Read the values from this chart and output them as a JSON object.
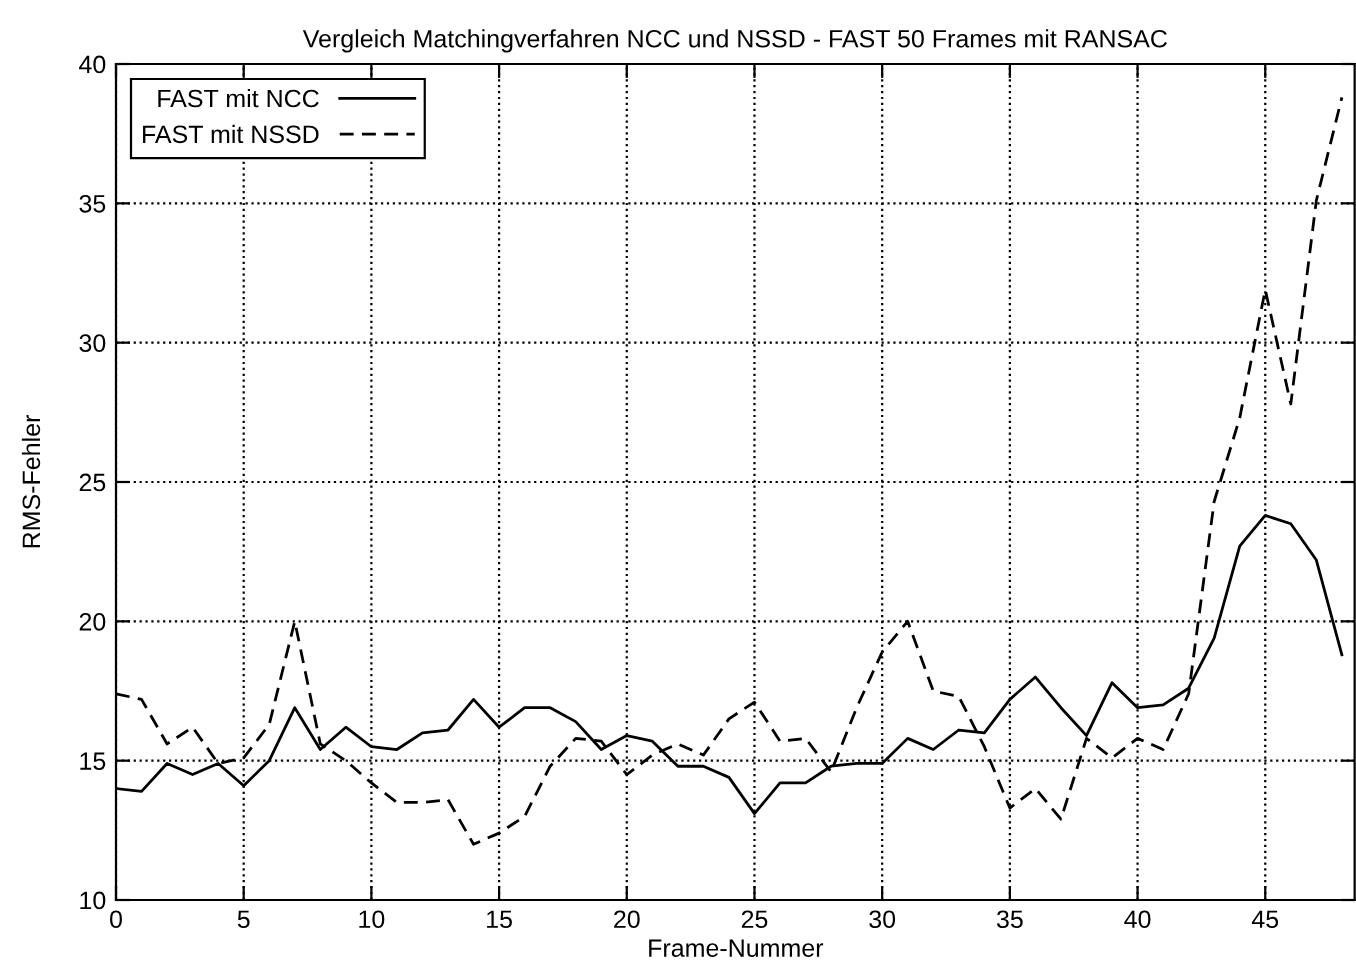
{
  "chart_data": {
    "type": "line",
    "title": "Vergleich Matchingverfahren NCC und NSSD - FAST 50 Frames mit RANSAC",
    "xlabel": "Frame-Nummer",
    "ylabel": "RMS-Fehler",
    "x": [
      0,
      1,
      2,
      3,
      4,
      5,
      6,
      7,
      8,
      9,
      10,
      11,
      12,
      13,
      14,
      15,
      16,
      17,
      18,
      19,
      20,
      21,
      22,
      23,
      24,
      25,
      26,
      27,
      28,
      29,
      30,
      31,
      32,
      33,
      34,
      35,
      36,
      37,
      38,
      39,
      40,
      41,
      42,
      43,
      44,
      45,
      46,
      47,
      48
    ],
    "series": [
      {
        "name": "FAST mit NCC",
        "color": "#000000",
        "line_style": "solid",
        "values": [
          14.0,
          13.9,
          14.9,
          14.5,
          14.9,
          14.1,
          15.0,
          16.9,
          15.4,
          16.2,
          15.5,
          15.4,
          16.0,
          16.1,
          17.2,
          16.2,
          16.9,
          16.9,
          16.4,
          15.4,
          15.9,
          15.7,
          14.8,
          14.8,
          14.4,
          13.1,
          14.2,
          14.2,
          14.8,
          14.9,
          14.9,
          15.8,
          15.4,
          16.1,
          16.0,
          17.2,
          18.0,
          16.9,
          15.9,
          17.8,
          16.9,
          17.0,
          17.6,
          19.4,
          22.7,
          23.8,
          23.5,
          22.2,
          18.8
        ]
      },
      {
        "name": "FAST mit NSSD",
        "color": "#000000",
        "line_style": "dashed",
        "values": [
          17.4,
          17.2,
          15.6,
          16.2,
          14.9,
          15.1,
          16.3,
          20.0,
          15.6,
          15.0,
          14.2,
          13.5,
          13.5,
          13.6,
          12.0,
          12.4,
          13.0,
          14.8,
          15.8,
          15.7,
          14.5,
          15.2,
          15.6,
          15.2,
          16.5,
          17.1,
          15.7,
          15.8,
          14.6,
          16.9,
          18.9,
          20.0,
          17.5,
          17.3,
          15.5,
          13.3,
          14.0,
          12.9,
          15.8,
          15.1,
          15.8,
          15.4,
          17.4,
          24.3,
          27.3,
          31.9,
          27.8,
          35.1,
          38.8
        ]
      }
    ],
    "xlim": [
      0,
      48.5
    ],
    "ylim": [
      10,
      40
    ],
    "xticks": [
      0,
      5,
      10,
      15,
      20,
      25,
      30,
      35,
      40,
      45
    ],
    "yticks": [
      10,
      15,
      20,
      25,
      30,
      35,
      40
    ],
    "grid": true,
    "legend": "top left",
    "marker": "none"
  }
}
